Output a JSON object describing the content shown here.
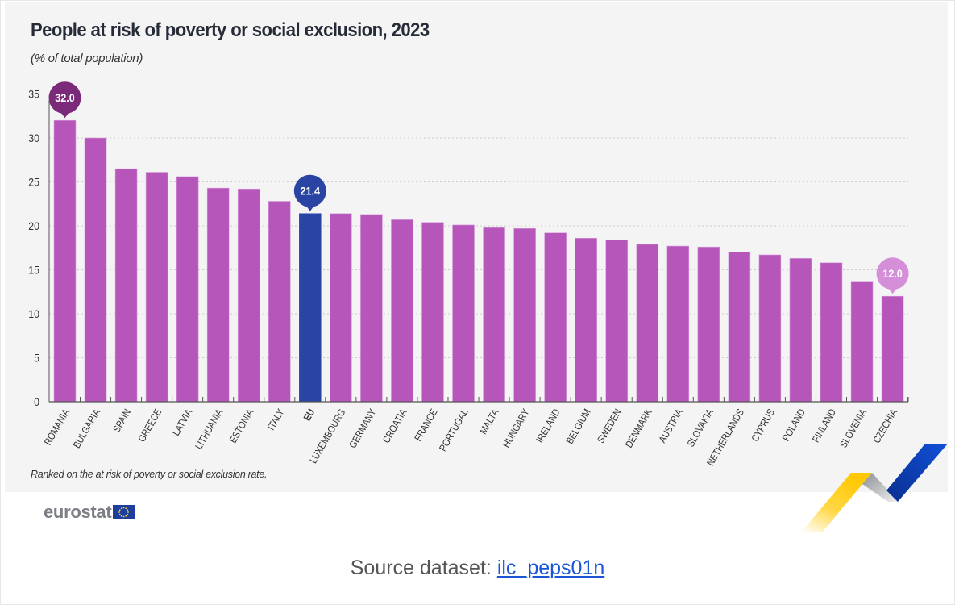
{
  "header": {
    "title": "People at risk of poverty or social exclusion, 2023",
    "subtitle": "(% of total population)"
  },
  "footnote": "Ranked on the at risk of poverty or social exclusion rate.",
  "logo": {
    "text": "eurostat",
    "flag_icon": "eu-flag-icon"
  },
  "source": {
    "label": "Source dataset:",
    "link_text": "ilc_peps01n"
  },
  "colors": {
    "bar": "#b656bb",
    "eu_bar": "#2a44a4",
    "max_bubble": "#7b2a7a",
    "min_bubble": "#d48fd8",
    "eu_bubble": "#2a44a4",
    "axis_text": "#333333",
    "grid": "#cccccc"
  },
  "chart_data": {
    "type": "bar",
    "title": "People at risk of poverty or social exclusion, 2023",
    "subtitle": "(% of total population)",
    "xlabel": "",
    "ylabel": "% of total population",
    "ylim": [
      0,
      35
    ],
    "yticks": [
      0,
      5,
      10,
      15,
      20,
      25,
      30,
      35
    ],
    "grid": true,
    "categories": [
      "ROMANIA",
      "BULGARIA",
      "SPAIN",
      "GREECE",
      "LATVIA",
      "LITHUANIA",
      "ESTONIA",
      "ITALY",
      "EU",
      "LUXEMBOURG",
      "GERMANY",
      "CROATIA",
      "FRANCE",
      "PORTUGAL",
      "MALTA",
      "HUNGARY",
      "IRELAND",
      "BELGIUM",
      "SWEDEN",
      "DENMARK",
      "AUSTRIA",
      "SLOVAKIA",
      "NETHERLANDS",
      "CYPRUS",
      "POLAND",
      "FINLAND",
      "SLOVENIA",
      "CZECHIA"
    ],
    "values": [
      32.0,
      30.0,
      26.5,
      26.1,
      25.6,
      24.3,
      24.2,
      22.8,
      21.4,
      21.4,
      21.3,
      20.7,
      20.4,
      20.1,
      19.8,
      19.7,
      19.2,
      18.6,
      18.4,
      17.9,
      17.7,
      17.6,
      17.0,
      16.7,
      16.3,
      15.8,
      13.7,
      12.0
    ],
    "highlight": "EU",
    "annotations": [
      {
        "category": "ROMANIA",
        "label": "32.0",
        "style": "max"
      },
      {
        "category": "EU",
        "label": "21.4",
        "style": "eu"
      },
      {
        "category": "CZECHIA",
        "label": "12.0",
        "style": "min"
      }
    ],
    "note": "Ranked on the at risk of poverty or social exclusion rate."
  }
}
